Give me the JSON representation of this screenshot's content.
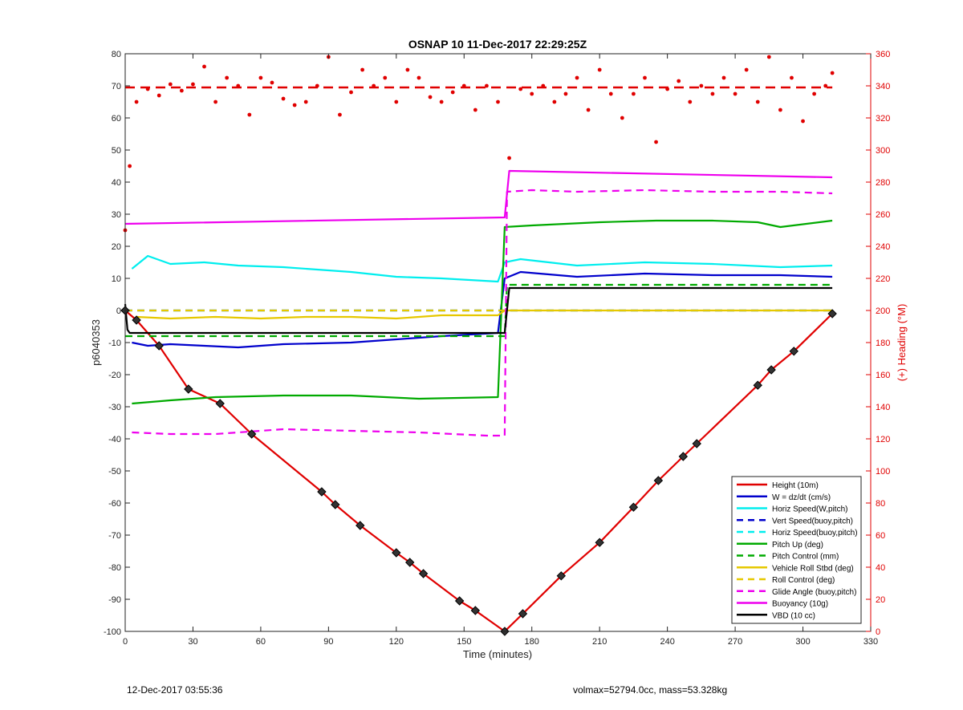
{
  "chart_data": {
    "type": "line",
    "title": "OSNAP 10 11-Dec-2017 22:29:25Z",
    "xlabel": "Time (minutes)",
    "ylabel": "p6040353",
    "y2label": "(+) Heading (°M)",
    "xlim": [
      0,
      330
    ],
    "ylim": [
      -100,
      80
    ],
    "y2lim": [
      0,
      360
    ],
    "xticks": [
      0,
      30,
      60,
      90,
      120,
      150,
      180,
      210,
      240,
      270,
      300,
      330
    ],
    "yticks": [
      -100,
      -90,
      -80,
      -70,
      -60,
      -50,
      -40,
      -30,
      -20,
      -10,
      0,
      10,
      20,
      30,
      40,
      50,
      60,
      70,
      80
    ],
    "y2ticks": [
      0,
      20,
      40,
      60,
      80,
      100,
      120,
      140,
      160,
      180,
      200,
      220,
      240,
      260,
      280,
      300,
      320,
      340,
      360
    ],
    "grid": false,
    "legend_position": "bottom-right",
    "colors": {
      "height": "#e00000",
      "w": "#0000cc",
      "horiz": "#00eeee",
      "pitch": "#00aa00",
      "roll": "#e6c800",
      "glide": "#ee00ee",
      "buoyancy": "#ee00ee",
      "vbd": "#000000",
      "heading": "#e00000",
      "axis_right": "#e00000"
    },
    "series": [
      {
        "name": "Height (10m)",
        "style": "solid",
        "color": "#e00000",
        "x": [
          0,
          5,
          15,
          28,
          42,
          56,
          87,
          93,
          104,
          120,
          126,
          132,
          148,
          155,
          168,
          176,
          193,
          210,
          225,
          236,
          247,
          253,
          280,
          286,
          296,
          313
        ],
        "y": [
          0,
          -3,
          -11,
          -24.5,
          -29,
          -38.5,
          -56.5,
          -60.5,
          -67,
          -75.5,
          -78.5,
          -82,
          -90.5,
          -93.5,
          -100,
          -94.5,
          -82.7,
          -72.3,
          -61.3,
          -53,
          -45.5,
          -41.5,
          -23.3,
          -18.5,
          -12.7,
          -1
        ]
      },
      {
        "name": "W = dz/dt (cm/s)",
        "style": "solid",
        "color": "#0000cc",
        "x": [
          3,
          10,
          20,
          35,
          50,
          70,
          100,
          120,
          140,
          165,
          168,
          175,
          200,
          230,
          260,
          290,
          313
        ],
        "y": [
          -10,
          -11,
          -10.5,
          -11,
          -11.5,
          -10.5,
          -10,
          -9,
          -8,
          -7,
          10,
          12,
          10.5,
          11.5,
          11,
          11,
          10.5
        ]
      },
      {
        "name": "Horiz Speed(W,pitch)",
        "style": "solid",
        "color": "#00eeee",
        "x": [
          3,
          10,
          20,
          35,
          50,
          70,
          100,
          120,
          140,
          165,
          168,
          175,
          200,
          230,
          260,
          290,
          313
        ],
        "y": [
          13,
          17,
          14.5,
          15,
          14,
          13.5,
          12,
          10.5,
          10,
          9,
          15,
          16,
          14,
          15,
          14.5,
          13.5,
          14
        ]
      },
      {
        "name": "Vert Speed(buoy,pitch)",
        "style": "dashed",
        "color": "#0000cc",
        "x": [
          0,
          168,
          169,
          313
        ],
        "y": [
          0,
          0,
          0,
          0
        ]
      },
      {
        "name": "Horiz Speed(buoy,pitch)",
        "style": "dashed",
        "color": "#00eeee",
        "x": [
          0,
          168,
          169,
          313
        ],
        "y": [
          0,
          0,
          0,
          0
        ]
      },
      {
        "name": "Pitch Up (deg)",
        "style": "solid",
        "color": "#00aa00",
        "x": [
          3,
          20,
          40,
          70,
          100,
          130,
          165,
          168,
          180,
          210,
          235,
          260,
          280,
          290,
          313
        ],
        "y": [
          -29,
          -28,
          -27,
          -26.5,
          -26.5,
          -27.5,
          -27,
          26,
          26.5,
          27.5,
          28,
          28,
          27.5,
          26,
          28
        ]
      },
      {
        "name": "Pitch Control (mm)",
        "style": "dashed",
        "color": "#00aa00",
        "x": [
          0,
          168,
          169,
          313
        ],
        "y": [
          -8,
          -8,
          8,
          8
        ]
      },
      {
        "name": "Vehicle Roll Stbd (deg)",
        "style": "solid",
        "color": "#e6c800",
        "x": [
          5,
          20,
          40,
          60,
          80,
          100,
          120,
          140,
          165,
          168,
          180,
          200,
          220,
          240,
          260,
          280,
          300,
          313
        ],
        "y": [
          -2,
          -2.5,
          -2,
          -2.5,
          -2,
          -2,
          -2.5,
          -1.5,
          -1.5,
          0,
          0,
          0,
          0,
          0,
          0,
          0,
          0,
          0
        ]
      },
      {
        "name": "Roll Control (deg)",
        "style": "dashed",
        "color": "#e6c800",
        "x": [
          0,
          168,
          169,
          313
        ],
        "y": [
          0,
          0,
          0,
          0
        ]
      },
      {
        "name": "Glide Angle (buoy,pitch)",
        "style": "dashed",
        "color": "#ee00ee",
        "x": [
          3,
          20,
          40,
          70,
          100,
          130,
          160,
          168,
          169,
          180,
          200,
          230,
          260,
          290,
          313
        ],
        "y": [
          -38,
          -38.5,
          -38.5,
          -37,
          -37.5,
          -38,
          -39,
          -39,
          37,
          37.5,
          37,
          37.5,
          37,
          37,
          36.5
        ]
      },
      {
        "name": "Buoyancy (10g)",
        "style": "solid",
        "color": "#ee00ee",
        "x": [
          0,
          168,
          170,
          313
        ],
        "y": [
          27,
          29,
          43.5,
          41.5
        ]
      },
      {
        "name": "VBD (10 cc)",
        "style": "solid",
        "color": "#000000",
        "x": [
          0,
          1,
          2,
          168,
          170,
          313
        ],
        "y": [
          2,
          -6,
          -7,
          -7,
          7,
          7
        ]
      }
    ],
    "heading": {
      "name": "Heading",
      "axis": "right",
      "nominal": 339,
      "x": [
        0,
        2,
        5,
        10,
        15,
        20,
        25,
        30,
        35,
        40,
        45,
        50,
        55,
        60,
        65,
        70,
        75,
        80,
        85,
        90,
        95,
        100,
        105,
        110,
        115,
        120,
        125,
        130,
        135,
        140,
        145,
        150,
        155,
        160,
        165,
        170,
        175,
        180,
        185,
        190,
        195,
        200,
        205,
        210,
        215,
        220,
        225,
        230,
        235,
        240,
        245,
        250,
        255,
        260,
        265,
        270,
        275,
        280,
        285,
        290,
        295,
        300,
        305,
        310,
        313
      ],
      "y": [
        250,
        290,
        330,
        338,
        334,
        341,
        337,
        341,
        352,
        330,
        345,
        340,
        322,
        345,
        342,
        332,
        328,
        330,
        340,
        358,
        322,
        336,
        350,
        340,
        345,
        330,
        350,
        345,
        333,
        330,
        336,
        340,
        325,
        340,
        330,
        295,
        338,
        335,
        340,
        330,
        335,
        345,
        325,
        350,
        335,
        320,
        335,
        345,
        305,
        338,
        343,
        330,
        340,
        335,
        345,
        335,
        350,
        330,
        358,
        325,
        345,
        318,
        335,
        340,
        348
      ]
    }
  },
  "footer": {
    "timestamp": "12-Dec-2017 03:55:36",
    "summary": "volmax=52794.0cc, mass=53.328kg"
  }
}
